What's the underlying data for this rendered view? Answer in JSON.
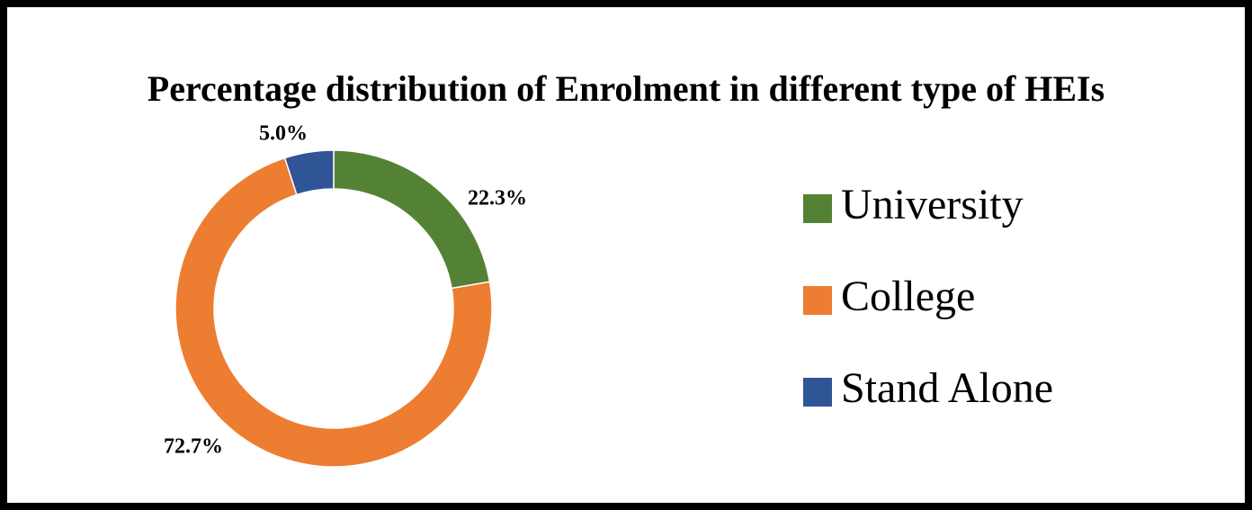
{
  "chart_data": {
    "type": "donut",
    "title": "Percentage distribution of Enrolment in different type of HEIs",
    "categories": [
      "University",
      "College",
      "Stand Alone"
    ],
    "values": [
      22.3,
      72.7,
      5.0
    ],
    "value_labels": [
      "22.3%",
      "72.7%",
      "5.0%"
    ],
    "colors": [
      "#548235",
      "#ed7d31",
      "#2f5597"
    ],
    "legend": "right"
  }
}
